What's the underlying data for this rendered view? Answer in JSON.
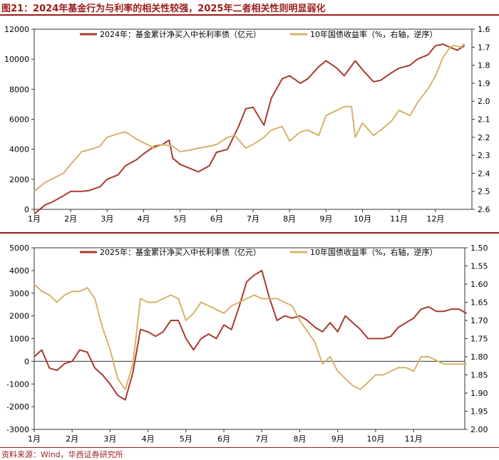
{
  "figure": {
    "title": "图21：2024年基金行为与利率的相关性较强，2025年二者相关性则明显弱化",
    "source": "资料来源：Wind，华西证券研究所"
  },
  "colors": {
    "fund": "#a93a2e",
    "yield": "#d6b36a",
    "accent": "#9b1b1b",
    "axis": "#333333"
  },
  "chart_data": [
    {
      "type": "line",
      "x_ticks": [
        "1月",
        "2月",
        "3月",
        "4月",
        "5月",
        "6月",
        "7月",
        "8月",
        "9月",
        "10月",
        "11月",
        "12月"
      ],
      "y_left": {
        "ylim": [
          0,
          12000
        ],
        "ticks": [
          "0",
          "2000",
          "4000",
          "6000",
          "8000",
          "10000",
          "12000"
        ]
      },
      "y_right": {
        "ylim": [
          1.6,
          2.6
        ],
        "inverted": true,
        "ticks": [
          "1.6",
          "1.7",
          "1.8",
          "1.9",
          "2.0",
          "2.1",
          "2.2",
          "2.3",
          "2.4",
          "2.5",
          "2.6"
        ]
      },
      "series": [
        {
          "name": "2024年：基金累计净买入中长利率债（亿元）",
          "axis": "left",
          "x": [
            0,
            0.3,
            0.5,
            0.8,
            1,
            1.3,
            1.5,
            1.8,
            2,
            2.3,
            2.5,
            2.8,
            3,
            3.3,
            3.5,
            3.7,
            3.75,
            3.8,
            4,
            4.3,
            4.5,
            4.8,
            5,
            5.3,
            5.5,
            5.6,
            5.8,
            6,
            6.3,
            6.5,
            6.8,
            7,
            7.3,
            7.5,
            7.8,
            8,
            8.3,
            8.5,
            8.8,
            9,
            9.3,
            9.5,
            9.8,
            10,
            10.3,
            10.5,
            10.8,
            11,
            11.2,
            11.4,
            11.6,
            11.8
          ],
          "values": [
            -300,
            300,
            500,
            900,
            1200,
            1200,
            1250,
            1500,
            2000,
            2300,
            2900,
            3300,
            3700,
            4200,
            4300,
            4600,
            4000,
            3400,
            3000,
            2700,
            2500,
            2900,
            3800,
            4000,
            5000,
            5500,
            6700,
            6800,
            5600,
            7400,
            8700,
            8900,
            8400,
            8700,
            9500,
            9900,
            9400,
            8900,
            9900,
            9300,
            8500,
            8600,
            9100,
            9400,
            9600,
            10000,
            10300,
            10900,
            11000,
            10800,
            10600,
            10900
          ]
        },
        {
          "name": "10年国债收益率（%，右轴，逆序）",
          "axis": "right",
          "x": [
            0,
            0.3,
            0.5,
            0.8,
            1,
            1.3,
            1.5,
            1.8,
            2,
            2.3,
            2.5,
            2.8,
            3,
            3.3,
            3.5,
            3.8,
            4,
            4.3,
            4.5,
            4.8,
            5,
            5.3,
            5.5,
            5.8,
            6,
            6.3,
            6.5,
            6.8,
            7,
            7.3,
            7.5,
            7.8,
            8,
            8.3,
            8.5,
            8.7,
            8.8,
            9,
            9.3,
            9.5,
            9.8,
            10,
            10.3,
            10.5,
            10.8,
            11,
            11.2,
            11.4,
            11.5,
            11.7,
            11.8
          ],
          "values": [
            2.5,
            2.45,
            2.43,
            2.4,
            2.35,
            2.28,
            2.27,
            2.25,
            2.2,
            2.18,
            2.17,
            2.21,
            2.23,
            2.26,
            2.24,
            2.25,
            2.28,
            2.27,
            2.26,
            2.25,
            2.24,
            2.2,
            2.19,
            2.26,
            2.24,
            2.2,
            2.16,
            2.14,
            2.22,
            2.17,
            2.16,
            2.19,
            2.08,
            2.05,
            2.03,
            2.03,
            2.2,
            2.12,
            2.19,
            2.16,
            2.11,
            2.05,
            2.08,
            2.01,
            1.93,
            1.86,
            1.76,
            1.7,
            1.69,
            1.7,
            1.68
          ]
        }
      ]
    },
    {
      "type": "line",
      "x_ticks": [
        "1月",
        "2月",
        "3月",
        "4月",
        "5月",
        "6月",
        "7月",
        "8月",
        "9月",
        "10月",
        "11月"
      ],
      "y_left": {
        "ylim": [
          -3000,
          5000
        ],
        "ticks": [
          "-3000",
          "-2000",
          "-1000",
          "0",
          "1000",
          "2000",
          "3000",
          "4000",
          "5000"
        ]
      },
      "y_right": {
        "ylim": [
          1.5,
          2.0
        ],
        "inverted": true,
        "ticks": [
          "1.50",
          "1.55",
          "1.60",
          "1.65",
          "1.70",
          "1.75",
          "1.80",
          "1.85",
          "1.90",
          "1.95",
          "2.00"
        ]
      },
      "series": [
        {
          "name": "2025年：基金累计净买入中长利率债（亿元）",
          "axis": "left",
          "x": [
            0,
            0.2,
            0.4,
            0.6,
            0.8,
            1,
            1.2,
            1.4,
            1.6,
            1.8,
            2,
            2.2,
            2.4,
            2.6,
            2.8,
            3,
            3.2,
            3.4,
            3.6,
            3.8,
            4,
            4.2,
            4.4,
            4.6,
            4.8,
            5,
            5.2,
            5.4,
            5.6,
            5.8,
            6,
            6.2,
            6.4,
            6.6,
            6.8,
            7,
            7.2,
            7.4,
            7.6,
            7.8,
            8,
            8.2,
            8.4,
            8.6,
            8.8,
            9,
            9.2,
            9.4,
            9.6,
            9.8,
            10,
            10.2,
            10.4,
            10.6,
            10.8,
            11,
            11.2,
            11.4
          ],
          "values": [
            200,
            500,
            -300,
            -400,
            -100,
            0,
            500,
            400,
            -300,
            -600,
            -1000,
            -1500,
            -1700,
            -500,
            1400,
            1300,
            1100,
            1300,
            1800,
            1800,
            1000,
            500,
            1000,
            1200,
            1000,
            1600,
            1400,
            2400,
            3500,
            3800,
            4000,
            2800,
            1800,
            2000,
            1900,
            2000,
            1800,
            1500,
            1300,
            1700,
            1300,
            2000,
            1700,
            1400,
            1000,
            1000,
            1000,
            1100,
            1500,
            1700,
            1900,
            2300,
            2400,
            2200,
            2200,
            2300,
            2300,
            2100
          ]
        },
        {
          "name": "10年国债收益率（%，右轴，逆序）",
          "axis": "right",
          "x": [
            0,
            0.2,
            0.4,
            0.6,
            0.8,
            1,
            1.2,
            1.4,
            1.6,
            1.8,
            2,
            2.2,
            2.4,
            2.6,
            2.8,
            3,
            3.2,
            3.4,
            3.6,
            3.8,
            4,
            4.2,
            4.4,
            4.6,
            4.8,
            5,
            5.2,
            5.4,
            5.6,
            5.8,
            6,
            6.2,
            6.4,
            6.6,
            6.8,
            7,
            7.2,
            7.4,
            7.6,
            7.8,
            8,
            8.2,
            8.4,
            8.6,
            8.8,
            9,
            9.2,
            9.4,
            9.6,
            9.8,
            10,
            10.2,
            10.4,
            10.6,
            10.8,
            11,
            11.2,
            11.4
          ],
          "values": [
            1.6,
            1.62,
            1.63,
            1.65,
            1.63,
            1.62,
            1.62,
            1.61,
            1.64,
            1.72,
            1.78,
            1.86,
            1.89,
            1.82,
            1.64,
            1.65,
            1.65,
            1.64,
            1.63,
            1.64,
            1.7,
            1.68,
            1.65,
            1.66,
            1.67,
            1.68,
            1.66,
            1.65,
            1.64,
            1.63,
            1.64,
            1.64,
            1.64,
            1.65,
            1.66,
            1.7,
            1.73,
            1.76,
            1.82,
            1.8,
            1.84,
            1.86,
            1.88,
            1.89,
            1.87,
            1.85,
            1.85,
            1.84,
            1.83,
            1.83,
            1.84,
            1.8,
            1.8,
            1.81,
            1.82,
            1.82,
            1.82,
            1.82
          ]
        }
      ]
    }
  ]
}
